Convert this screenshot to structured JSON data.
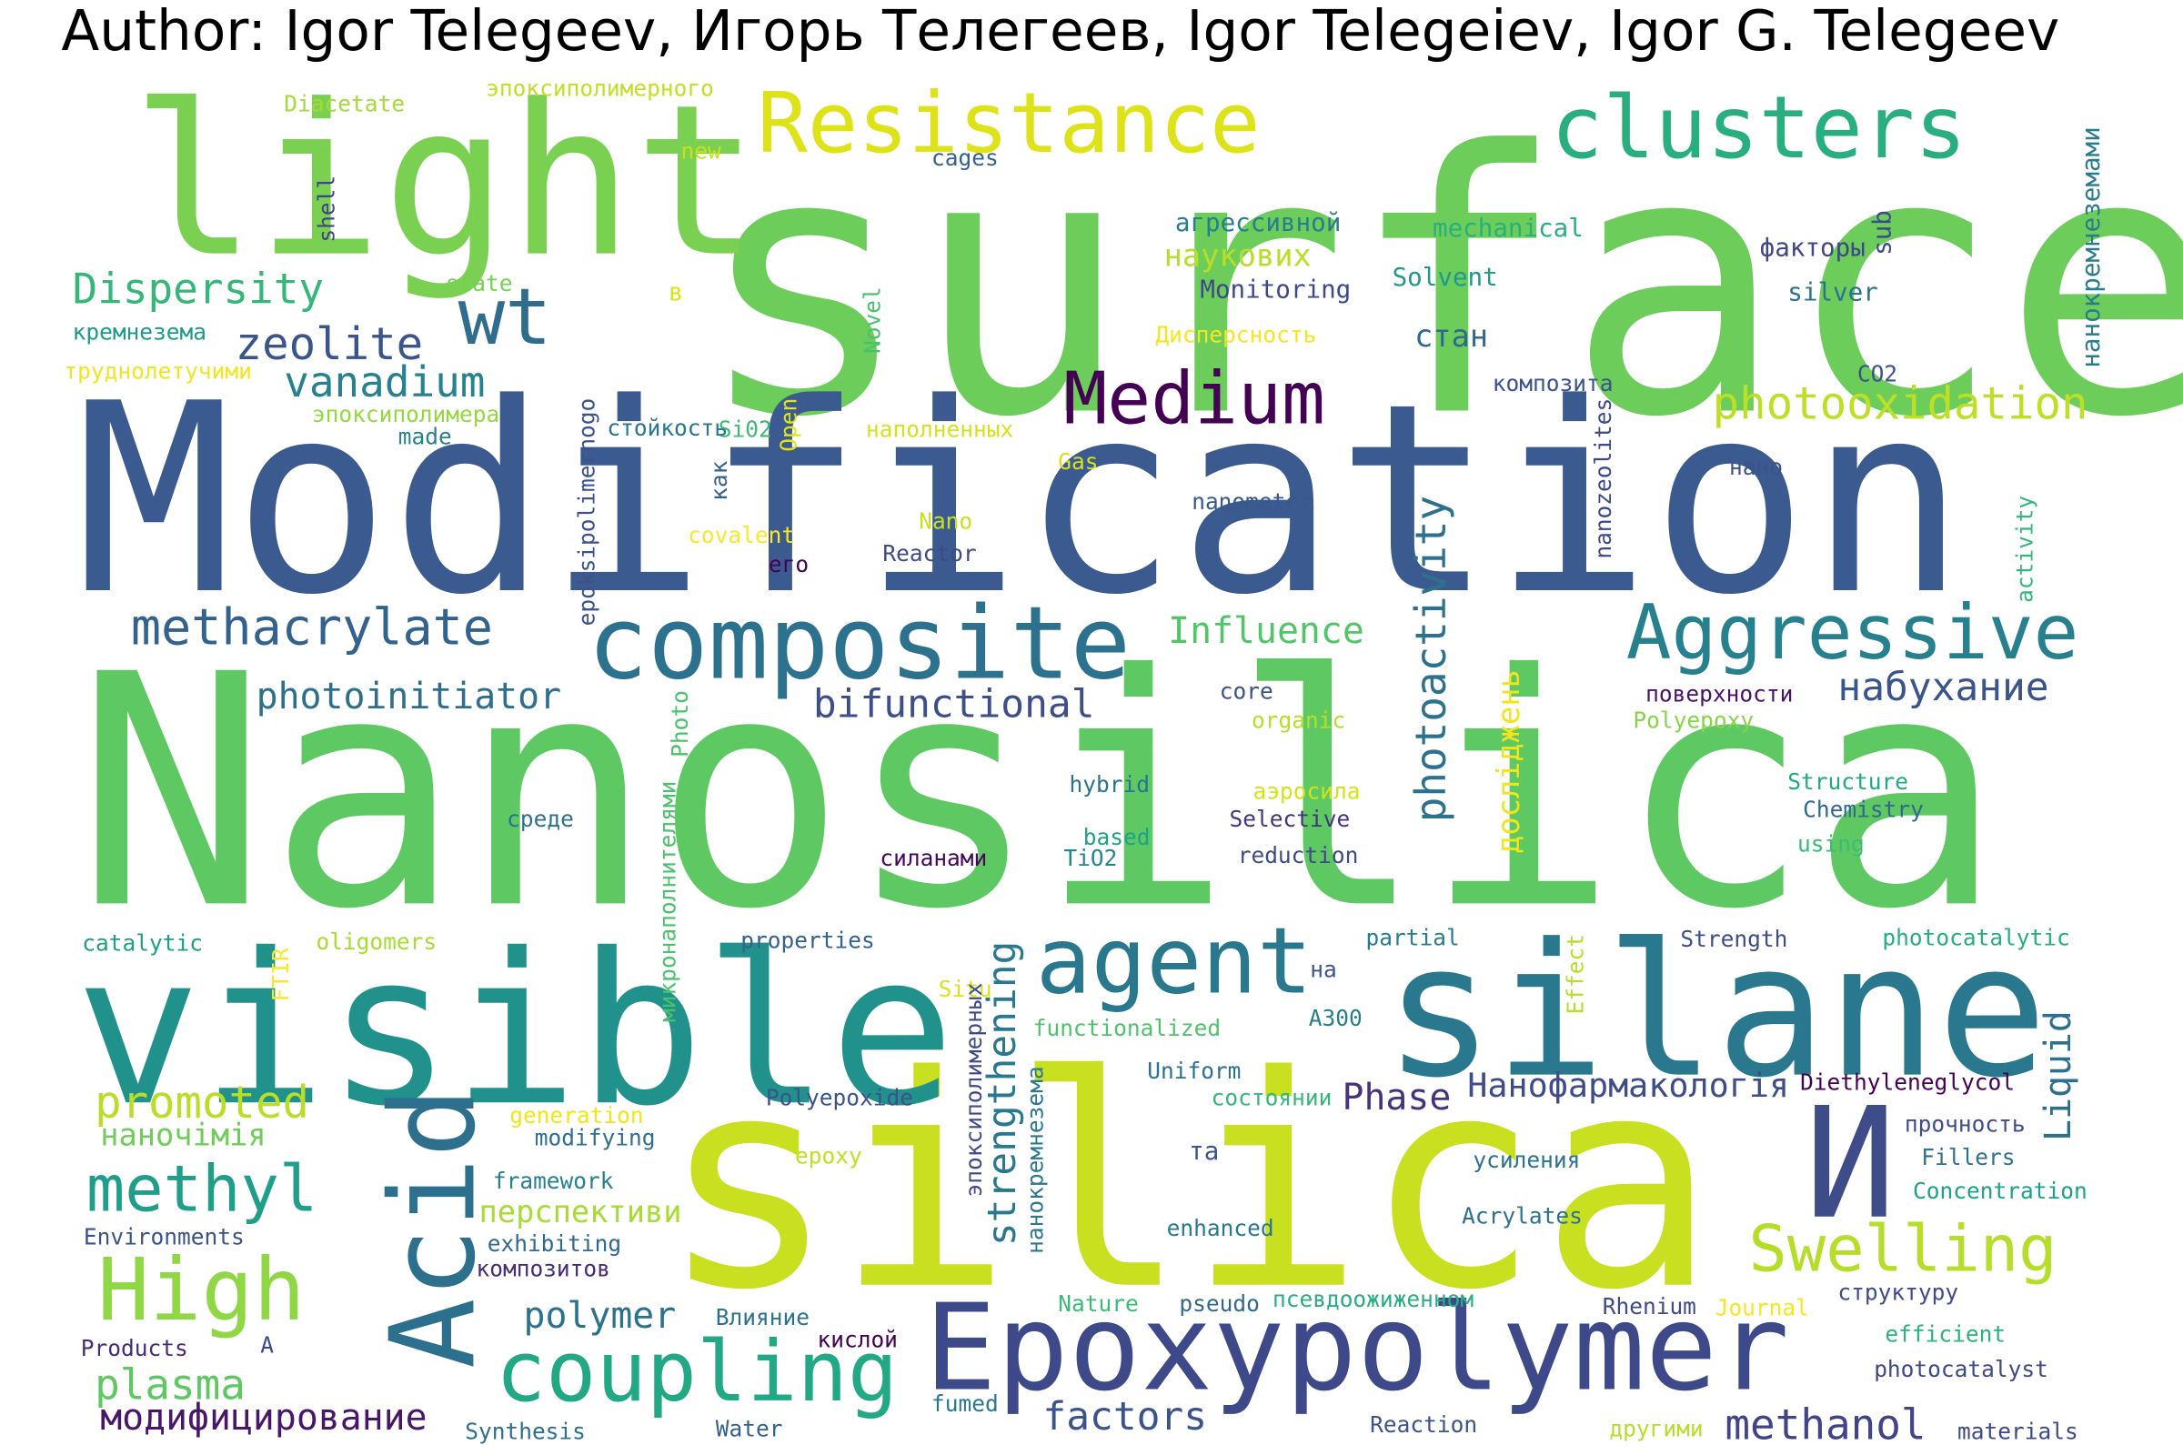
{
  "title": "Author: Igor Telegeev, Игорь Телегеев, Igor Telegeiev, Igor G. Telegeev",
  "words": [
    {
      "text": "surface",
      "color": "#6ccd5a"
    },
    {
      "text": "Modification",
      "color": "#3b5a8f"
    },
    {
      "text": "Nanosilica",
      "color": "#5ec962"
    },
    {
      "text": "silica",
      "color": "#c8e020"
    },
    {
      "text": "visible",
      "color": "#21918c"
    },
    {
      "text": "silane",
      "color": "#2a788e"
    },
    {
      "text": "light",
      "color": "#7ad151"
    },
    {
      "text": "Epoxypolymer",
      "color": "#3e4989"
    },
    {
      "text": "composite",
      "color": "#2c728e"
    },
    {
      "text": "Resistance",
      "color": "#dde318"
    },
    {
      "text": "clusters",
      "color": "#29af7f"
    },
    {
      "text": "Medium",
      "color": "#440154"
    },
    {
      "text": "Aggressive",
      "color": "#27808e"
    },
    {
      "text": "agent",
      "color": "#2a788e"
    },
    {
      "text": "Acid",
      "color": "#2d708e"
    },
    {
      "text": "coupling",
      "color": "#22a884"
    },
    {
      "text": "И",
      "color": "#3e4c8a"
    },
    {
      "text": "High",
      "color": "#8fd744"
    },
    {
      "text": "methyl",
      "color": "#1f9e89"
    },
    {
      "text": "wt",
      "color": "#2f6c8e"
    },
    {
      "text": "Swelling",
      "color": "#b5de2b"
    },
    {
      "text": "photooxidation",
      "color": "#bddf26"
    },
    {
      "text": "methacrylate",
      "color": "#33638d"
    },
    {
      "text": "zeolite",
      "color": "#3a548c"
    },
    {
      "text": "vanadium",
      "color": "#26828e"
    },
    {
      "text": "Dispersity",
      "color": "#35b779"
    },
    {
      "text": "photoinitiator",
      "color": "#2e6f8e"
    },
    {
      "text": "bifunctional",
      "color": "#3d4e8a"
    },
    {
      "text": "Influence",
      "color": "#52c569"
    },
    {
      "text": "набухание",
      "color": "#3a548c"
    },
    {
      "text": "photoactivity",
      "color": "#2c718e"
    },
    {
      "text": "promoted",
      "color": "#bade28"
    },
    {
      "text": "наночімія",
      "color": "#6ece58"
    },
    {
      "text": "plasma",
      "color": "#5ec962"
    },
    {
      "text": "модифицирование",
      "color": "#481769"
    },
    {
      "text": "polymer",
      "color": "#2c728e"
    },
    {
      "text": "factors",
      "color": "#3b528b"
    },
    {
      "text": "methanol",
      "color": "#414487"
    },
    {
      "text": "strengthening",
      "color": "#2a788e"
    },
    {
      "text": "Phase",
      "color": "#46337e"
    },
    {
      "text": "Нанофармакологія",
      "color": "#3e4c8a"
    },
    {
      "text": "Liquid",
      "color": "#2d708e"
    },
    {
      "text": "перспективи",
      "color": "#a8db34"
    },
    {
      "text": "дослiджень",
      "color": "#f1e51d"
    },
    {
      "text": "наукових",
      "color": "#b8de29"
    },
    {
      "text": "стан",
      "color": "#31688e"
    },
    {
      "text": "Monitoring",
      "color": "#3e4989"
    },
    {
      "text": "Solvent",
      "color": "#1f9a8a"
    },
    {
      "text": "mechanical",
      "color": "#29af7f"
    },
    {
      "text": "агрессивной",
      "color": "#277f8e"
    },
    {
      "text": "факторы",
      "color": "#404688"
    },
    {
      "text": "silver",
      "color": "#2c728e"
    },
    {
      "text": "нанокремнеземами",
      "color": "#287c8e"
    },
    {
      "text": "sub",
      "color": "#3e4a89"
    },
    {
      "text": "Diacetate",
      "color": "#a5db36"
    },
    {
      "text": "эпоксиполимерного",
      "color": "#c2df23"
    },
    {
      "text": "new",
      "color": "#c8e020"
    },
    {
      "text": "cages",
      "color": "#33638d"
    },
    {
      "text": "shell",
      "color": "#404387"
    },
    {
      "text": "state",
      "color": "#75d054"
    },
    {
      "text": "в",
      "color": "#dde318"
    },
    {
      "text": "кремнезема",
      "color": "#1f998a"
    },
    {
      "text": "труднолетучими",
      "color": "#f1e51d"
    },
    {
      "text": "эпоксиполимера",
      "color": "#95d840"
    },
    {
      "text": "made",
      "color": "#26828e"
    },
    {
      "text": "epoksipolimernogo",
      "color": "#3b528b"
    },
    {
      "text": "Si02",
      "color": "#3bbb75"
    },
    {
      "text": "Open",
      "color": "#e2e418"
    },
    {
      "text": "Novel",
      "color": "#48c16e"
    },
    {
      "text": "Дисперсность",
      "color": "#f6e620"
    },
    {
      "text": "композита",
      "color": "#3b528b"
    },
    {
      "text": "CO2",
      "color": "#3b528b"
    },
    {
      "text": "стойкость",
      "color": "#2a768e"
    },
    {
      "text": "наполненных",
      "color": "#d5e21a"
    },
    {
      "text": "Gas",
      "color": "#d8e219"
    },
    {
      "text": "как",
      "color": "#33638d"
    },
    {
      "text": "nanometer",
      "color": "#375a8c"
    },
    {
      "text": "nanozeolites",
      "color": "#3e4989"
    },
    {
      "text": "нано",
      "color": "#3b528b"
    },
    {
      "text": "activity",
      "color": "#35b779"
    },
    {
      "text": "covalent",
      "color": "#fde725"
    },
    {
      "text": "его",
      "color": "#440154"
    },
    {
      "text": "Nano",
      "color": "#c8e020"
    },
    {
      "text": "Reactor",
      "color": "#3e4989"
    },
    {
      "text": "core",
      "color": "#3b528b"
    },
    {
      "text": "organic",
      "color": "#b5de2b"
    },
    {
      "text": "поверхности",
      "color": "#481467"
    },
    {
      "text": "Polyepoxy",
      "color": "#86d549"
    },
    {
      "text": "Photo",
      "color": "#4ac16d"
    },
    {
      "text": "hybrid",
      "color": "#2c728e"
    },
    {
      "text": "аэросила",
      "color": "#d2e21b"
    },
    {
      "text": "Structure",
      "color": "#22a884"
    },
    {
      "text": "Chemistry",
      "color": "#31688e"
    },
    {
      "text": "среде",
      "color": "#2c728e"
    },
    {
      "text": "Selective",
      "color": "#46337e"
    },
    {
      "text": "based",
      "color": "#1fa088"
    },
    {
      "text": "reduction",
      "color": "#3e4a89"
    },
    {
      "text": "using",
      "color": "#3bbb75"
    },
    {
      "text": "силанами",
      "color": "#46075a"
    },
    {
      "text": "TiO2",
      "color": "#25848e"
    },
    {
      "text": "микронаполнителями",
      "color": "#4ac16d"
    },
    {
      "text": "catalytic",
      "color": "#1f9e89"
    },
    {
      "text": "oligomers",
      "color": "#a8db34"
    },
    {
      "text": "properties",
      "color": "#33638d"
    },
    {
      "text": "partial",
      "color": "#287c8e"
    },
    {
      "text": "Strength",
      "color": "#3e4c8a"
    },
    {
      "text": "photocatalytic",
      "color": "#26ad81"
    },
    {
      "text": "FTIR",
      "color": "#fde725"
    },
    {
      "text": "Situ",
      "color": "#dde318"
    },
    {
      "text": "на",
      "color": "#3b528b"
    },
    {
      "text": "эпоксиполимерных",
      "color": "#3e4989"
    },
    {
      "text": "functionalized",
      "color": "#4ec36b"
    },
    {
      "text": "Effect",
      "color": "#b5de2b"
    },
    {
      "text": "A300",
      "color": "#277f8e"
    },
    {
      "text": "Uniform",
      "color": "#2c728e"
    },
    {
      "text": "состоянии",
      "color": "#35b779"
    },
    {
      "text": "Diethyleneglycol",
      "color": "#440154"
    },
    {
      "text": "нанокремнезема",
      "color": "#2a788e"
    },
    {
      "text": "Polyepoxide",
      "color": "#3b528b"
    },
    {
      "text": "generation",
      "color": "#f1e51d"
    },
    {
      "text": "modifying",
      "color": "#2e6f8e"
    },
    {
      "text": "та",
      "color": "#3a548c"
    },
    {
      "text": "усиления",
      "color": "#2c728e"
    },
    {
      "text": "прочность",
      "color": "#3e4c8a"
    },
    {
      "text": "Fillers",
      "color": "#2c728e"
    },
    {
      "text": "Concentration",
      "color": "#1fa188"
    },
    {
      "text": "epoxy",
      "color": "#c2df23"
    },
    {
      "text": "framework",
      "color": "#277f8e"
    },
    {
      "text": "exhibiting",
      "color": "#31688e"
    },
    {
      "text": "Environments",
      "color": "#3b528b"
    },
    {
      "text": "композитов",
      "color": "#472c7a"
    },
    {
      "text": "enhanced",
      "color": "#2a788e"
    },
    {
      "text": "Acrylates",
      "color": "#2c718e"
    },
    {
      "text": "Nature",
      "color": "#3bbb75"
    },
    {
      "text": "pseudo",
      "color": "#31688e"
    },
    {
      "text": "псевдоожиженном",
      "color": "#29af7f"
    },
    {
      "text": "Rhenium",
      "color": "#3e4a89"
    },
    {
      "text": "Journal",
      "color": "#f8e621"
    },
    {
      "text": "структуру",
      "color": "#3e4c8a"
    },
    {
      "text": "Влияние",
      "color": "#2c728e"
    },
    {
      "text": "кислой",
      "color": "#440154"
    },
    {
      "text": "Products",
      "color": "#472c7a"
    },
    {
      "text": "A",
      "color": "#3e4989"
    },
    {
      "text": "efficient",
      "color": "#2db27d"
    },
    {
      "text": "photocatalyst",
      "color": "#3e4989"
    },
    {
      "text": "Synthesis",
      "color": "#2e6f8e"
    },
    {
      "text": "Water",
      "color": "#33638d"
    },
    {
      "text": "fumed",
      "color": "#2a788e"
    },
    {
      "text": "Reaction",
      "color": "#3b528b"
    },
    {
      "text": "другими",
      "color": "#b5de2b"
    },
    {
      "text": "materials",
      "color": "#3e4989"
    }
  ]
}
